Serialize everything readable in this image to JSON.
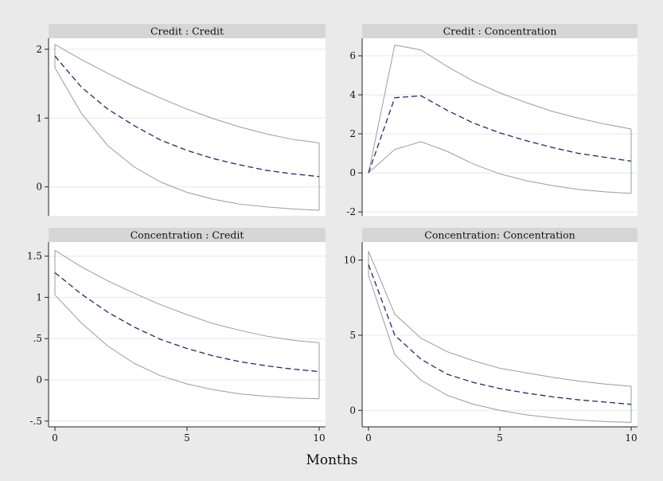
{
  "figure": {
    "xlabel": "Months",
    "x_ticks": [
      0,
      5,
      10
    ]
  },
  "colors": {
    "background": "#eaeaea",
    "panel": "#ffffff",
    "header": "#d6d6d6",
    "grid": "#e4e8ee",
    "band": "#9c9c9c",
    "irf": "#1c2d6b"
  },
  "chart_data": [
    {
      "type": "line",
      "title": "Credit : Credit",
      "x": [
        0,
        1,
        2,
        3,
        4,
        5,
        6,
        7,
        8,
        9,
        10
      ],
      "ylim": [
        -0.42,
        2.16
      ],
      "y_ticks": [
        0,
        1,
        2
      ],
      "y_tick_labels": [
        "0",
        "1",
        "2"
      ],
      "grid": true,
      "series": [
        {
          "role": "upper",
          "values": [
            2.07,
            1.85,
            1.65,
            1.46,
            1.29,
            1.13,
            0.99,
            0.87,
            0.77,
            0.69,
            0.64
          ]
        },
        {
          "role": "irf",
          "values": [
            1.9,
            1.45,
            1.13,
            0.89,
            0.68,
            0.53,
            0.41,
            0.32,
            0.24,
            0.19,
            0.15
          ]
        },
        {
          "role": "lower",
          "values": [
            1.73,
            1.07,
            0.6,
            0.29,
            0.07,
            -0.08,
            -0.18,
            -0.25,
            -0.29,
            -0.32,
            -0.34
          ]
        }
      ]
    },
    {
      "type": "line",
      "title": "Credit : Concentration",
      "x": [
        0,
        1,
        2,
        3,
        4,
        5,
        6,
        7,
        8,
        9,
        10
      ],
      "ylim": [
        -2.2,
        6.9
      ],
      "y_ticks": [
        -2,
        0,
        2,
        4,
        6
      ],
      "y_tick_labels": [
        "-2",
        "0",
        "2",
        "4",
        "6"
      ],
      "grid": true,
      "series": [
        {
          "role": "upper",
          "values": [
            0,
            6.55,
            6.3,
            5.45,
            4.7,
            4.1,
            3.6,
            3.15,
            2.8,
            2.5,
            2.25
          ]
        },
        {
          "role": "irf",
          "values": [
            0,
            3.85,
            3.95,
            3.2,
            2.55,
            2.05,
            1.65,
            1.3,
            1.0,
            0.8,
            0.6
          ]
        },
        {
          "role": "lower",
          "values": [
            0,
            1.2,
            1.6,
            1.1,
            0.45,
            -0.05,
            -0.4,
            -0.65,
            -0.85,
            -0.97,
            -1.05
          ]
        }
      ]
    },
    {
      "type": "line",
      "title": "Concentration : Credit",
      "x": [
        0,
        1,
        2,
        3,
        4,
        5,
        6,
        7,
        8,
        9,
        10
      ],
      "ylim": [
        -0.57,
        1.67
      ],
      "y_ticks": [
        -0.5,
        0,
        0.5,
        1,
        1.5
      ],
      "y_tick_labels": [
        "-.5",
        "0",
        ".5",
        "1",
        "1.5"
      ],
      "grid": true,
      "series": [
        {
          "role": "upper",
          "values": [
            1.57,
            1.37,
            1.2,
            1.05,
            0.91,
            0.79,
            0.68,
            0.6,
            0.53,
            0.48,
            0.45
          ]
        },
        {
          "role": "irf",
          "values": [
            1.3,
            1.04,
            0.82,
            0.64,
            0.49,
            0.38,
            0.29,
            0.22,
            0.17,
            0.13,
            0.1
          ]
        },
        {
          "role": "lower",
          "values": [
            1.03,
            0.69,
            0.41,
            0.2,
            0.05,
            -0.05,
            -0.12,
            -0.17,
            -0.2,
            -0.22,
            -0.23
          ]
        }
      ]
    },
    {
      "type": "line",
      "title": "Concentration: Concentration",
      "x": [
        0,
        1,
        2,
        3,
        4,
        5,
        6,
        7,
        8,
        9,
        10
      ],
      "ylim": [
        -1.1,
        11.2
      ],
      "y_ticks": [
        0,
        5,
        10
      ],
      "y_tick_labels": [
        "0",
        "5",
        "10"
      ],
      "grid": true,
      "series": [
        {
          "role": "upper",
          "values": [
            10.6,
            6.4,
            4.8,
            3.9,
            3.3,
            2.8,
            2.5,
            2.2,
            1.95,
            1.75,
            1.6
          ]
        },
        {
          "role": "irf",
          "values": [
            9.7,
            5.0,
            3.4,
            2.4,
            1.85,
            1.45,
            1.15,
            0.9,
            0.7,
            0.55,
            0.4
          ]
        },
        {
          "role": "lower",
          "values": [
            9.0,
            3.7,
            2.0,
            1.0,
            0.4,
            0.0,
            -0.3,
            -0.5,
            -0.65,
            -0.75,
            -0.8
          ]
        }
      ]
    }
  ]
}
